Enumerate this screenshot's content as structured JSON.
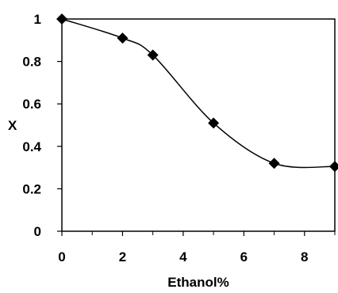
{
  "chart_data": {
    "type": "line",
    "xlabel": "Ethanol%",
    "ylabel": "X",
    "xlim": [
      0,
      9
    ],
    "ylim": [
      0,
      1
    ],
    "x_ticks": [
      0,
      2,
      4,
      6,
      8
    ],
    "x_tick_labels": [
      "0",
      "2",
      "4",
      "6",
      "8"
    ],
    "y_ticks": [
      0,
      0.2,
      0.4,
      0.6,
      0.8,
      1
    ],
    "y_tick_labels": [
      "0",
      "0.2",
      "0.4",
      "0.6",
      "0.8",
      "1"
    ],
    "grid": false,
    "marker": "diamond",
    "line_style": "smooth",
    "color": "#000000",
    "series": [
      {
        "x": [
          0,
          2,
          3,
          5,
          7,
          9
        ],
        "y": [
          1.0,
          0.91,
          0.83,
          0.51,
          0.32,
          0.305
        ]
      }
    ]
  }
}
